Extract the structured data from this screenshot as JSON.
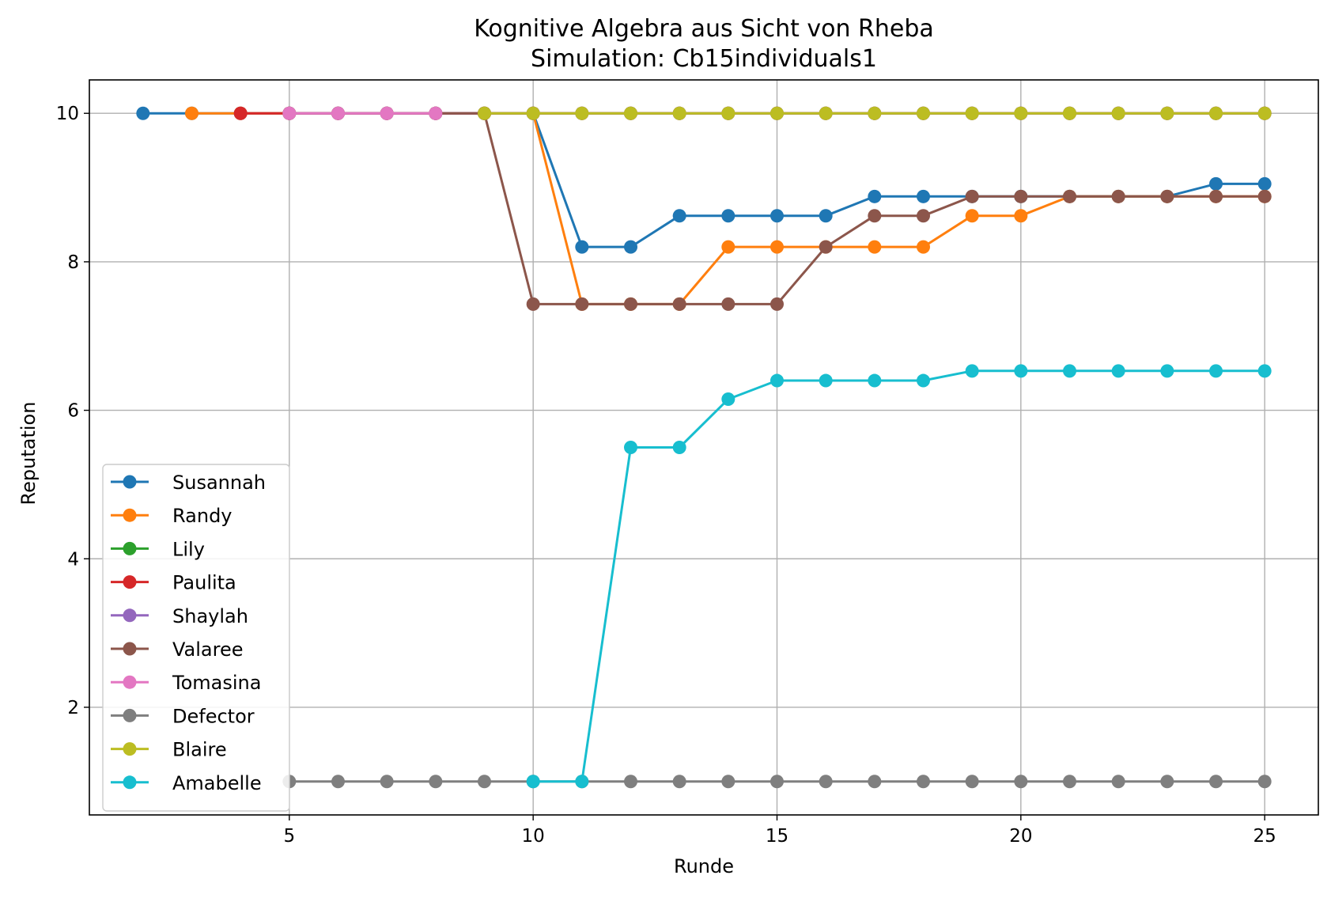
{
  "chart_data": {
    "type": "line",
    "title": "Kognitive Algebra aus Sicht von Rheba",
    "subtitle": "Simulation: Cb15individuals1",
    "xlabel": "Runde",
    "ylabel": "Reputation",
    "xlim": [
      0.9,
      26.1
    ],
    "ylim": [
      0.55,
      10.45
    ],
    "xticks": [
      5,
      10,
      15,
      20,
      25
    ],
    "yticks": [
      2,
      4,
      6,
      8,
      10
    ],
    "grid": true,
    "legend_position": "lower-left",
    "series": [
      {
        "name": "Susannah",
        "color": "#1f77b4",
        "x": [
          2,
          3,
          4,
          5,
          6,
          7,
          8,
          9,
          10,
          11,
          12,
          13,
          14,
          15,
          16,
          17,
          18,
          19,
          20,
          21,
          22,
          23,
          24,
          25
        ],
        "y": [
          10,
          10,
          10,
          10,
          10,
          10,
          10,
          10,
          10,
          8.2,
          8.2,
          8.62,
          8.62,
          8.62,
          8.62,
          8.88,
          8.88,
          8.88,
          8.88,
          8.88,
          8.88,
          8.88,
          9.05,
          9.05
        ]
      },
      {
        "name": "Randy",
        "color": "#ff7f0e",
        "x": [
          3,
          4,
          5,
          6,
          7,
          8,
          9,
          10,
          11,
          12,
          13,
          14,
          15,
          16,
          17,
          18,
          19,
          20,
          21,
          22,
          23,
          24,
          25
        ],
        "y": [
          10,
          10,
          10,
          10,
          10,
          10,
          10,
          10,
          7.43,
          7.43,
          7.43,
          8.2,
          8.2,
          8.2,
          8.2,
          8.2,
          8.62,
          8.62,
          8.88,
          8.88,
          8.88,
          8.88,
          8.88
        ]
      },
      {
        "name": "Lily",
        "color": "#2ca02c",
        "x": [
          9,
          10,
          11,
          12,
          13,
          14,
          15,
          16,
          17,
          18,
          19,
          20,
          21,
          22,
          23,
          24,
          25
        ],
        "y": [
          10,
          10,
          10,
          10,
          10,
          10,
          10,
          10,
          10,
          10,
          10,
          10,
          10,
          10,
          10,
          10,
          10
        ]
      },
      {
        "name": "Paulita",
        "color": "#d62728",
        "x": [
          4,
          5,
          6,
          7,
          8,
          9,
          10,
          11,
          12,
          13,
          14,
          15,
          16,
          17,
          18,
          19,
          20,
          21,
          22,
          23,
          24,
          25
        ],
        "y": [
          10,
          10,
          10,
          10,
          10,
          10,
          10,
          10,
          10,
          10,
          10,
          10,
          10,
          10,
          10,
          10,
          10,
          10,
          10,
          10,
          10,
          10
        ]
      },
      {
        "name": "Shaylah",
        "color": "#9467bd",
        "x": [
          5,
          6,
          7,
          8,
          9,
          10,
          11,
          12,
          13,
          14,
          15,
          16,
          17,
          18,
          19,
          20,
          21,
          22,
          23,
          24,
          25
        ],
        "y": [
          10,
          10,
          10,
          10,
          10,
          10,
          10,
          10,
          10,
          10,
          10,
          10,
          10,
          10,
          10,
          10,
          10,
          10,
          10,
          10,
          10
        ]
      },
      {
        "name": "Valaree",
        "color": "#8c564b",
        "x": [
          5,
          6,
          7,
          8,
          9,
          10,
          11,
          12,
          13,
          14,
          15,
          16,
          17,
          18,
          19,
          20,
          21,
          22,
          23,
          24,
          25
        ],
        "y": [
          10,
          10,
          10,
          10,
          10,
          7.43,
          7.43,
          7.43,
          7.43,
          7.43,
          7.43,
          8.2,
          8.62,
          8.62,
          8.88,
          8.88,
          8.88,
          8.88,
          8.88,
          8.88,
          8.88
        ]
      },
      {
        "name": "Tomasina",
        "color": "#e377c2",
        "x": [
          5,
          6,
          7,
          8
        ],
        "y": [
          10,
          10,
          10,
          10
        ]
      },
      {
        "name": "Defector",
        "color": "#7f7f7f",
        "x": [
          5,
          6,
          7,
          8,
          9,
          10,
          11,
          12,
          13,
          14,
          15,
          16,
          17,
          18,
          19,
          20,
          21,
          22,
          23,
          24,
          25
        ],
        "y": [
          1,
          1,
          1,
          1,
          1,
          1,
          1,
          1,
          1,
          1,
          1,
          1,
          1,
          1,
          1,
          1,
          1,
          1,
          1,
          1,
          1
        ]
      },
      {
        "name": "Blaire",
        "color": "#bcbd22",
        "x": [
          9,
          10,
          11,
          12,
          13,
          14,
          15,
          16,
          17,
          18,
          19,
          20,
          21,
          22,
          23,
          24,
          25
        ],
        "y": [
          10,
          10,
          10,
          10,
          10,
          10,
          10,
          10,
          10,
          10,
          10,
          10,
          10,
          10,
          10,
          10,
          10
        ]
      },
      {
        "name": "Amabelle",
        "color": "#17becf",
        "x": [
          10,
          11,
          12,
          13,
          14,
          15,
          16,
          17,
          18,
          19,
          20,
          21,
          22,
          23,
          24,
          25
        ],
        "y": [
          1,
          1,
          5.5,
          5.5,
          6.15,
          6.4,
          6.4,
          6.4,
          6.4,
          6.53,
          6.53,
          6.53,
          6.53,
          6.53,
          6.53,
          6.53
        ]
      }
    ]
  }
}
